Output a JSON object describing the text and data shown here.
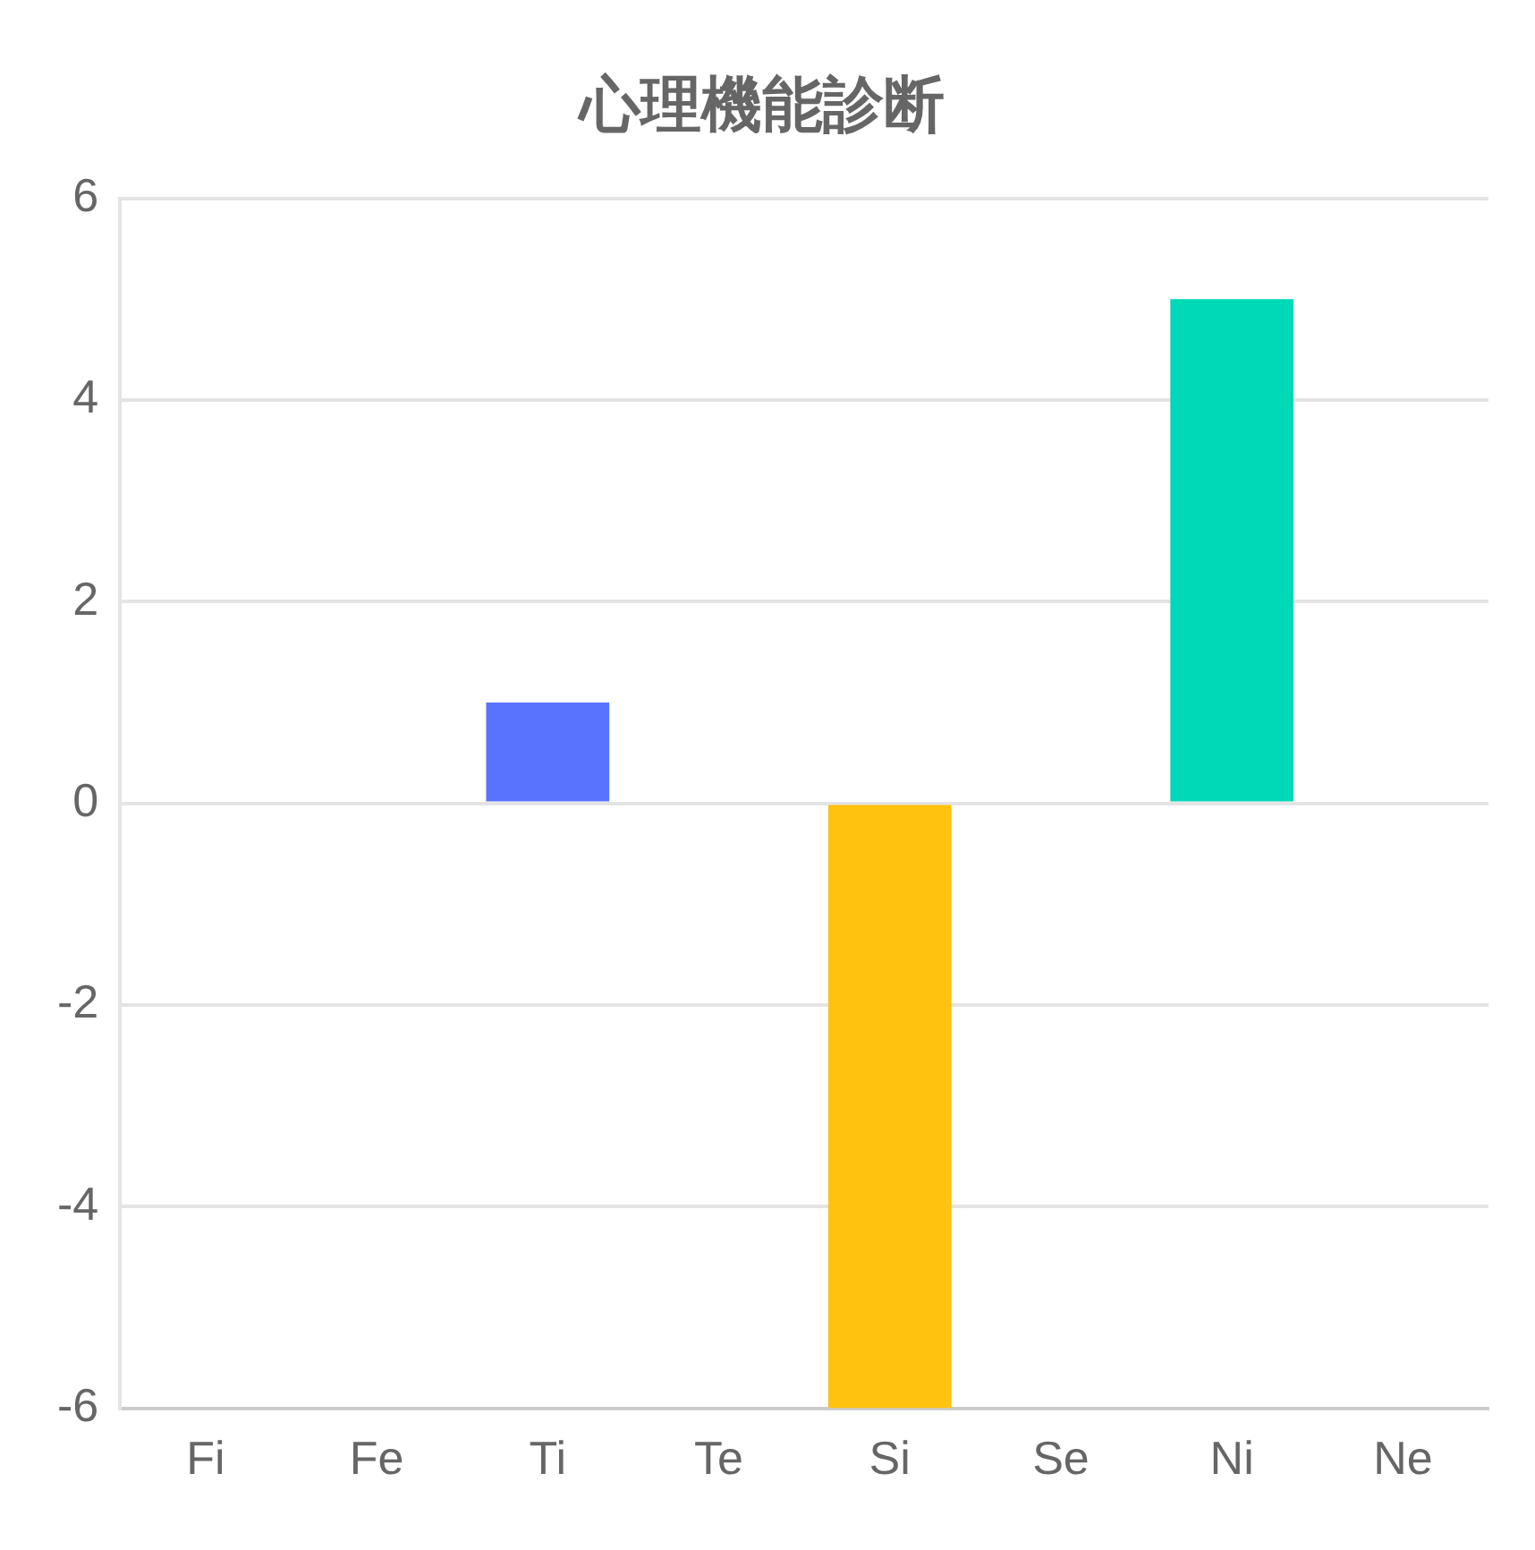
{
  "chart_data": {
    "type": "bar",
    "title": "心理機能診断",
    "categories": [
      "Fi",
      "Fe",
      "Ti",
      "Te",
      "Si",
      "Se",
      "Ni",
      "Ne"
    ],
    "values": [
      0,
      0,
      1,
      0,
      -6,
      0,
      5,
      0
    ],
    "colors": [
      "#ff6384",
      "#ff9f40",
      "#5a73ff",
      "#4bc0c0",
      "#ffc20e",
      "#9966ff",
      "#00d9b8",
      "#c9cbcf"
    ],
    "ylim": [
      -6,
      6
    ],
    "yticks": [
      -6,
      -4,
      -2,
      0,
      2,
      4,
      6
    ],
    "grid": "y",
    "legend": false
  }
}
